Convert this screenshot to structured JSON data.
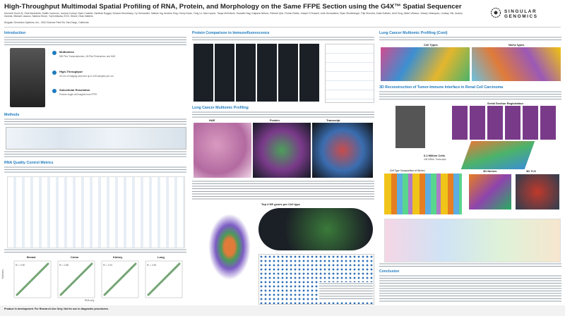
{
  "header": {
    "title": "High-Throughput Multimodal Spatial Profiling of RNA, Protein, and Morphology on the Same FFPE Section using the G4X™ Spatial Sequencer",
    "authors": "Kenneth Gouin III, Gina Benedetto, Kaitlin Cameron, Joshua Cortopi, Ryan Costello, Santhak Duggal, Sevana Hennessey, Cy Hernandez, Nathan Ing, Andrew King, Henry Kwan, Tung Le, Alan Lipson, Tanya McKinlock, Saurabh Nag, Kalpana Nelson, Richard Que, Florian Raths, Joseph D Russell, Jude Senarathne, Ryan Shultzberger, Filip Shumba, Katia Sullivan, Amit Tong, Albert Velasco, Jessey Velasquez, Lindsay Vile, Audrey Zaneds, Michael Lawson, Sabrina Shore, Yuji Ishitsuka, Eli N. Glezer, Dean Walters",
    "affiliation": "Singular Genomics Systems, Inc., 3010 Science Park Rd, San Diego, California",
    "logo": "SINGULAR GENOMICS"
  },
  "introduction": {
    "heading": "Introduction",
    "features": [
      {
        "title": "Multiomics",
        "text": "550 Plex Transcriptomics, 18-Plex Proteomics, and H&E"
      },
      {
        "title": "High-Throughput",
        "text": "40 cm² of imaging area and up to 128 samples per run"
      },
      {
        "title": "Subcellular Resolution",
        "text": "Precise single cell insights from FFPE"
      }
    ]
  },
  "methods": {
    "heading": "Methods"
  },
  "rna_qc": {
    "heading": "RNA Quality Control Metrics",
    "panels": [
      {
        "tissue": "Breast",
        "r2": "R² = 0.90"
      },
      {
        "tissue": "Colon",
        "r2": "R² = 0.89"
      },
      {
        "tissue": "Kidney",
        "r2": "R² = 0.91"
      },
      {
        "tissue": "Lung",
        "r2": "R² = 0.90"
      }
    ],
    "x_label": "RNA only",
    "y_label": "Multiomic"
  },
  "protein": {
    "heading": "Protein Comparison to Immunofluorescence"
  },
  "lung": {
    "heading": "Lung Cancer Multiomic Profiling",
    "panels": [
      "H&E",
      "Protein",
      "Transcript"
    ],
    "de_title": "Top 3 DE genes per Cell type"
  },
  "lung_cont": {
    "heading": "Lung Cancer Multiomic Profiling (Cont)",
    "panels": [
      "Cell Types",
      "Niche types"
    ]
  },
  "rcc": {
    "heading": "3D Reconstruction of Tumor-Immune Interface in Renal Cell Carcinoma",
    "serial": "Serial Section Registration",
    "cells": "6.2 Million Cells",
    "transcripts": "438 Million Transcripts",
    "composition": "Cell Type Composition of Niches",
    "niches": "3D Niches",
    "tls": "3D TLS"
  },
  "conclusion": {
    "heading": "Conclusion"
  },
  "footer": "Product in development. For Research Use Only. Not for use in diagnostic procedures."
}
